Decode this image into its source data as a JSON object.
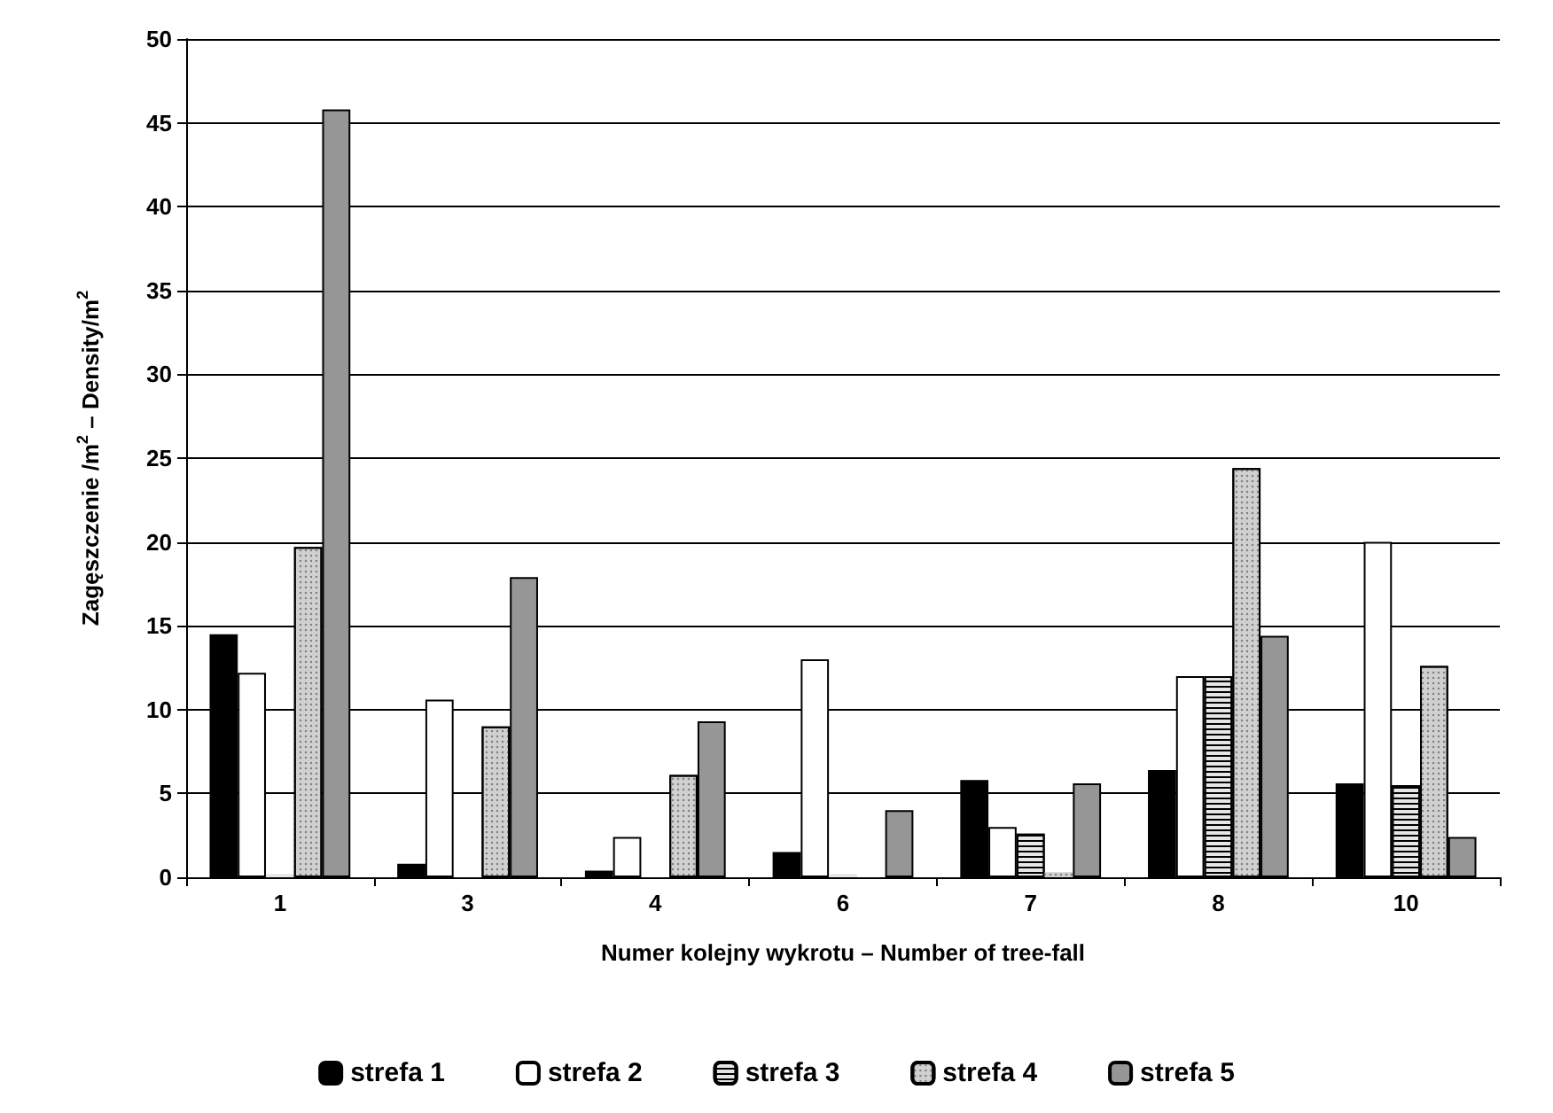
{
  "chart_data": {
    "type": "bar",
    "xlabel": "Numer kolejny wykrotu – Number of tree-fall",
    "ylabel": "Zagęszczenie /m$^{2}$ – Density/m$^{2}$",
    "categories": [
      "1",
      "3",
      "4",
      "6",
      "7",
      "8",
      "10"
    ],
    "series": [
      {
        "name": "strefa 1",
        "color": "#000000",
        "values": [
          14.5,
          0.8,
          0.4,
          1.5,
          5.8,
          6.4,
          5.6
        ]
      },
      {
        "name": "strefa 2",
        "color": "#ffffff",
        "values": [
          12.2,
          10.6,
          2.4,
          13.0,
          3.0,
          12.0,
          20.0
        ]
      },
      {
        "name": "strefa 3",
        "color": "#e6e6e6",
        "values": [
          0.2,
          null,
          null,
          0.2,
          2.6,
          12.0,
          5.5
        ]
      },
      {
        "name": "strefa 4",
        "color": "#d0d0d0",
        "values": [
          19.7,
          9.0,
          6.1,
          null,
          0.3,
          24.4,
          12.6
        ]
      },
      {
        "name": "strefa 5",
        "color": "#969696",
        "values": [
          45.8,
          17.9,
          9.3,
          4.0,
          5.6,
          14.4,
          2.4
        ]
      }
    ],
    "ylim": [
      0,
      50
    ],
    "yticks": [
      0,
      5,
      10,
      15,
      20,
      25,
      30,
      35,
      40,
      45,
      50
    ],
    "grid": "y",
    "legend": "bottom"
  }
}
